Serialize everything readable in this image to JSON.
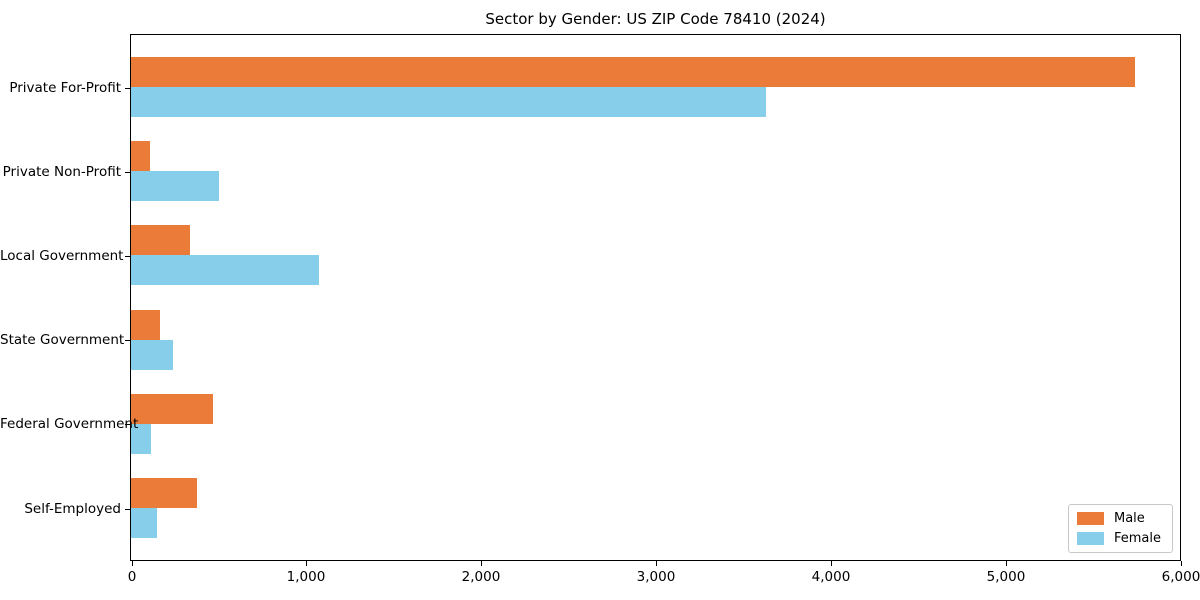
{
  "chart_data": {
    "type": "bar",
    "orientation": "horizontal",
    "title": "Sector by Gender: US ZIP Code 78410 (2024)",
    "categories": [
      "Private For-Profit",
      "Private Non-Profit",
      "Local Government",
      "State Government",
      "Federal Government",
      "Self-Employed"
    ],
    "series": [
      {
        "name": "Male",
        "color": "#eb7b38",
        "values": [
          5740,
          110,
          335,
          165,
          470,
          375
        ]
      },
      {
        "name": "Female",
        "color": "#87ceeb",
        "values": [
          3630,
          505,
          1075,
          240,
          115,
          150
        ]
      }
    ],
    "xlabel": "",
    "ylabel": "",
    "xlim": [
      0,
      6000
    ],
    "xticks": [
      0,
      1000,
      2000,
      3000,
      4000,
      5000,
      6000
    ],
    "xtick_labels": [
      "0",
      "1,000",
      "2,000",
      "3,000",
      "4,000",
      "5,000",
      "6,000"
    ],
    "grid": false,
    "legend": {
      "position": "lower right"
    }
  },
  "colors": {
    "axis": "#000000",
    "text": "#000000",
    "legend_border": "#c9c9c9",
    "background": "#ffffff"
  }
}
